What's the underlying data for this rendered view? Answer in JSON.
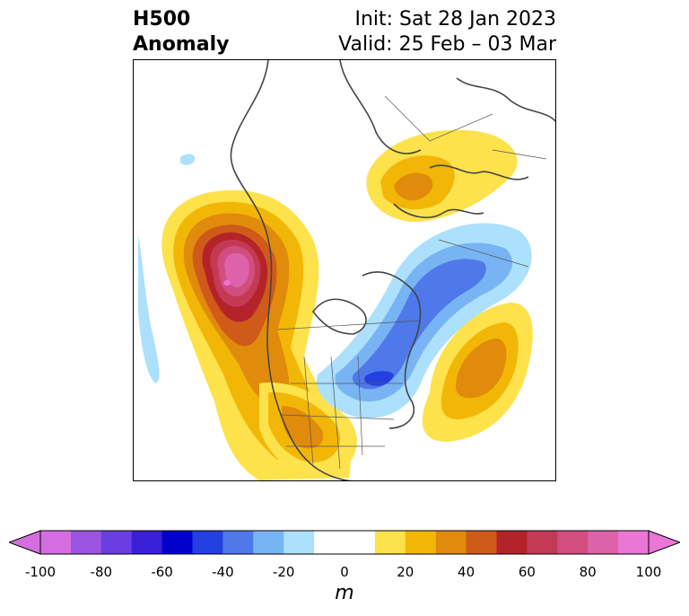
{
  "header": {
    "title_line1": "H500",
    "title_line2": "Anomaly",
    "init": "Init: Sat 28 Jan 2023",
    "valid": "Valid: 25 Feb – 03 Mar"
  },
  "colorbar": {
    "unit": "m",
    "ticks": [
      "-100",
      "-80",
      "-60",
      "-40",
      "-20",
      "0",
      "20",
      "40",
      "60",
      "80",
      "100"
    ],
    "min": -100,
    "max": 100,
    "extend": "both",
    "levels": [
      {
        "from": -100,
        "to": -90,
        "color": "#d46ee0"
      },
      {
        "from": -90,
        "to": -80,
        "color": "#9b55e0"
      },
      {
        "from": -80,
        "to": -70,
        "color": "#6a3ee0"
      },
      {
        "from": -70,
        "to": -60,
        "color": "#3b1fd6"
      },
      {
        "from": -60,
        "to": -50,
        "color": "#0000cc"
      },
      {
        "from": -50,
        "to": -40,
        "color": "#2440e0"
      },
      {
        "from": -40,
        "to": -30,
        "color": "#4f78ea"
      },
      {
        "from": -30,
        "to": -20,
        "color": "#78b4f4"
      },
      {
        "from": -20,
        "to": -10,
        "color": "#ace0fc"
      },
      {
        "from": -10,
        "to": 10,
        "color": "#ffffff"
      },
      {
        "from": 10,
        "to": 20,
        "color": "#fde24c"
      },
      {
        "from": 20,
        "to": 30,
        "color": "#f2b706"
      },
      {
        "from": 30,
        "to": 40,
        "color": "#e08b0c"
      },
      {
        "from": 40,
        "to": 50,
        "color": "#cf5a1a"
      },
      {
        "from": 50,
        "to": 60,
        "color": "#b4232a"
      },
      {
        "from": 60,
        "to": 70,
        "color": "#c43a55"
      },
      {
        "from": 70,
        "to": 80,
        "color": "#d14e7e"
      },
      {
        "from": 80,
        "to": 90,
        "color": "#de62aa"
      },
      {
        "from": 90,
        "to": 100,
        "color": "#ea76d5"
      }
    ],
    "under_color": "#d46ee0",
    "over_color": "#ea76d5"
  },
  "map": {
    "projection": "polar stereographic, North America / North Pole",
    "coastline_color": "#444444"
  }
}
